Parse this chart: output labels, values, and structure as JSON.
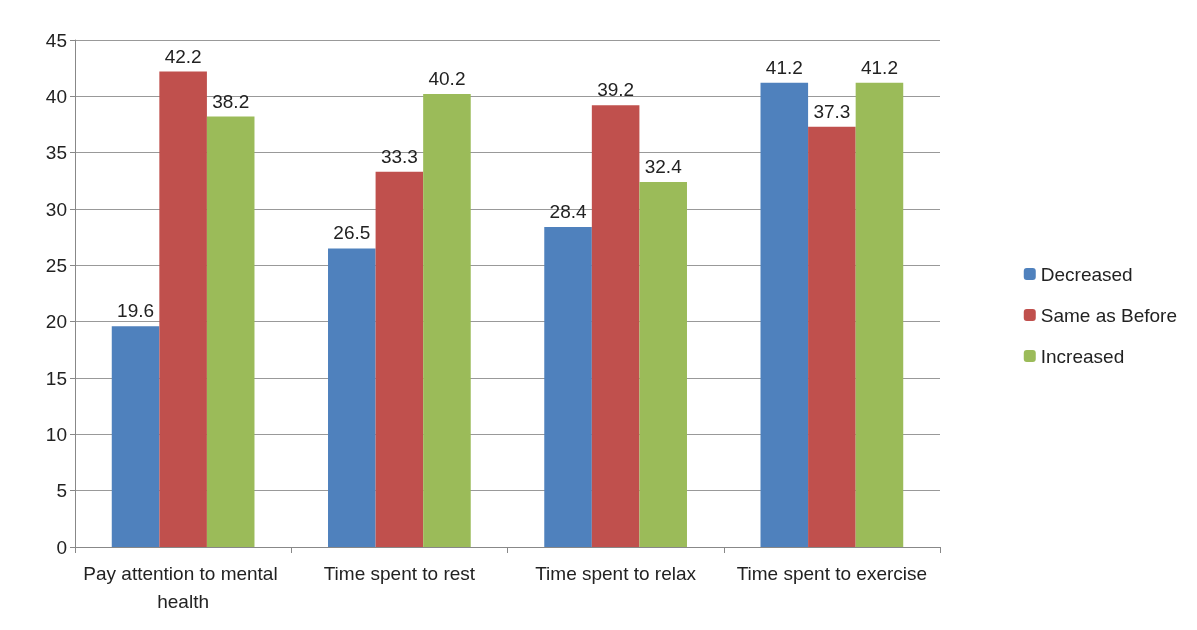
{
  "chart_data": {
    "type": "bar",
    "categories": [
      "Pay attention to mental health",
      "Time spent to rest",
      "Time spent to relax",
      "Time spent to exercise"
    ],
    "series": [
      {
        "name": "Decreased",
        "color": "#4f81bd",
        "values": [
          19.6,
          26.5,
          28.4,
          41.2
        ]
      },
      {
        "name": "Same as Before",
        "color": "#c0504d",
        "values": [
          42.2,
          33.3,
          39.2,
          37.3
        ]
      },
      {
        "name": "Increased",
        "color": "#9bbb59",
        "values": [
          38.2,
          40.2,
          32.4,
          41.2
        ]
      }
    ],
    "ylim": [
      0,
      45
    ],
    "yticks": [
      0,
      5,
      10,
      15,
      20,
      25,
      30,
      35,
      40,
      45
    ],
    "grid": "y",
    "legend": "right",
    "data_labels": true
  }
}
